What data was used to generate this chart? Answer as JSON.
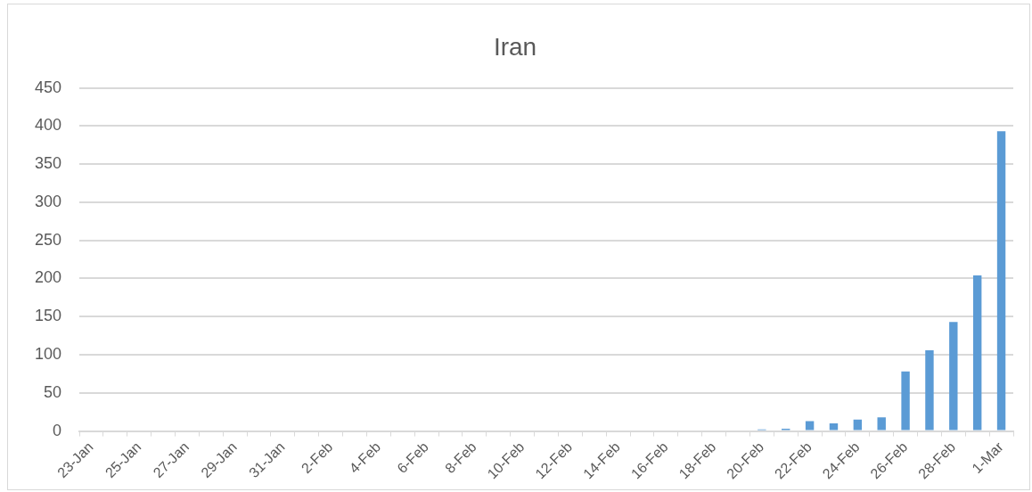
{
  "chart_data": {
    "type": "bar",
    "title": "Iran",
    "categories": [
      "23-Jan",
      null,
      "25-Jan",
      null,
      "27-Jan",
      null,
      "29-Jan",
      null,
      "31-Jan",
      null,
      "2-Feb",
      null,
      "4-Feb",
      null,
      "6-Feb",
      null,
      "8-Feb",
      null,
      "10-Feb",
      null,
      "12-Feb",
      null,
      "14-Feb",
      null,
      "16-Feb",
      null,
      "18-Feb",
      null,
      "20-Feb",
      null,
      "22-Feb",
      null,
      "24-Feb",
      null,
      "26-Feb",
      null,
      "28-Feb",
      null,
      "1-Mar"
    ],
    "values": [
      0,
      0,
      0,
      0,
      0,
      0,
      0,
      0,
      0,
      0,
      0,
      0,
      0,
      0,
      0,
      0,
      0,
      0,
      0,
      0,
      0,
      0,
      0,
      0,
      0,
      0,
      0,
      0,
      2,
      3,
      13,
      10,
      15,
      18,
      78,
      106,
      143,
      204,
      393
    ],
    "color": "#5b9bd5",
    "ylim": [
      0,
      450
    ],
    "yticks": [
      0,
      50,
      100,
      150,
      200,
      250,
      300,
      350,
      400,
      450
    ],
    "grid": "y"
  }
}
